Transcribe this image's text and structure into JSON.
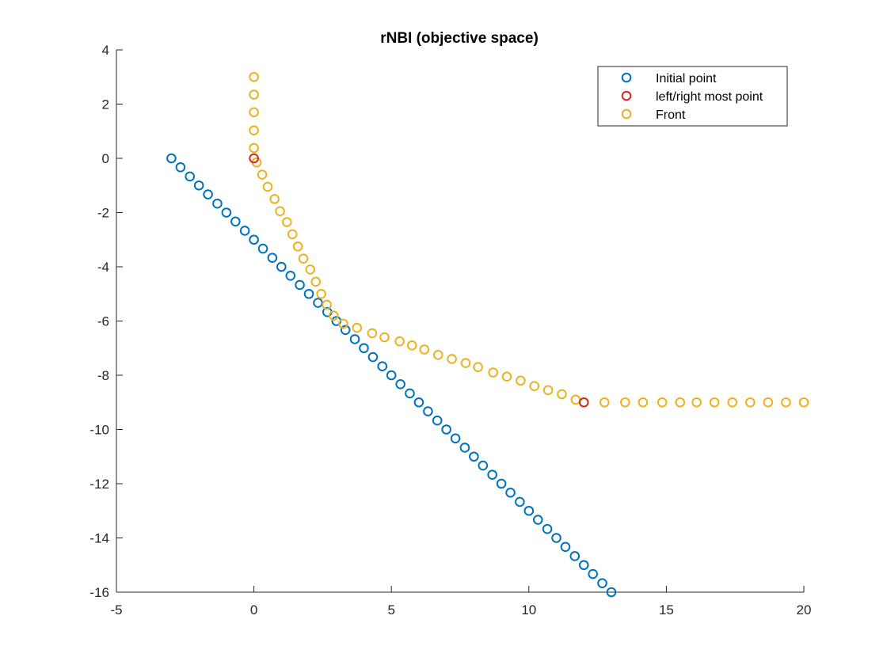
{
  "chart_data": {
    "type": "scatter",
    "title": "rNBI (objective space)",
    "xlabel": "",
    "ylabel": "",
    "xlim": [
      -5,
      20
    ],
    "ylim": [
      -16,
      4
    ],
    "x_ticks": [
      -5,
      0,
      5,
      10,
      15,
      20
    ],
    "y_ticks": [
      -16,
      -14,
      -12,
      -10,
      -8,
      -6,
      -4,
      -2,
      0,
      2,
      4
    ],
    "x_tick_labels": [
      "-5",
      "0",
      "5",
      "10",
      "15",
      "20"
    ],
    "y_tick_labels": [
      "-16",
      "-14",
      "-12",
      "-10",
      "-8",
      "-6",
      "-4",
      "-2",
      "0",
      "2",
      "4"
    ],
    "grid": false,
    "legend_position": "top-right",
    "marker": "open-circle",
    "series": [
      {
        "name": "Initial point",
        "color": "#0072BD",
        "points": [
          [
            -3,
            0
          ],
          [
            -2.67,
            -0.33
          ],
          [
            -2.33,
            -0.67
          ],
          [
            -2,
            -1
          ],
          [
            -1.67,
            -1.33
          ],
          [
            -1.33,
            -1.67
          ],
          [
            -1,
            -2
          ],
          [
            -0.67,
            -2.33
          ],
          [
            -0.33,
            -2.67
          ],
          [
            0,
            -3
          ],
          [
            0.33,
            -3.33
          ],
          [
            0.67,
            -3.67
          ],
          [
            1,
            -4
          ],
          [
            1.33,
            -4.33
          ],
          [
            1.67,
            -4.67
          ],
          [
            2,
            -5
          ],
          [
            2.33,
            -5.33
          ],
          [
            2.67,
            -5.67
          ],
          [
            3,
            -6
          ],
          [
            3.33,
            -6.33
          ],
          [
            3.67,
            -6.67
          ],
          [
            4,
            -7
          ],
          [
            4.33,
            -7.33
          ],
          [
            4.67,
            -7.67
          ],
          [
            5,
            -8
          ],
          [
            5.33,
            -8.33
          ],
          [
            5.67,
            -8.67
          ],
          [
            6,
            -9
          ],
          [
            6.33,
            -9.33
          ],
          [
            6.67,
            -9.67
          ],
          [
            7,
            -10
          ],
          [
            7.33,
            -10.33
          ],
          [
            7.67,
            -10.67
          ],
          [
            8,
            -11
          ],
          [
            8.33,
            -11.33
          ],
          [
            8.67,
            -11.67
          ],
          [
            9,
            -12
          ],
          [
            9.33,
            -12.33
          ],
          [
            9.67,
            -12.67
          ],
          [
            10,
            -13
          ],
          [
            10.33,
            -13.33
          ],
          [
            10.67,
            -13.67
          ],
          [
            11,
            -14
          ],
          [
            11.33,
            -14.33
          ],
          [
            11.67,
            -14.67
          ],
          [
            12,
            -15
          ],
          [
            12.33,
            -15.33
          ],
          [
            12.67,
            -15.67
          ],
          [
            13,
            -16
          ]
        ]
      },
      {
        "name": "left/right most point",
        "color": "#D62A1E",
        "points": [
          [
            0,
            0
          ],
          [
            12,
            -9
          ]
        ]
      },
      {
        "name": "Front",
        "color": "#EDB120",
        "points": [
          [
            0,
            3
          ],
          [
            0,
            2.35
          ],
          [
            0,
            1.7
          ],
          [
            0,
            1.03
          ],
          [
            0,
            0.38
          ],
          [
            0.1,
            -0.15
          ],
          [
            0.3,
            -0.6
          ],
          [
            0.5,
            -1.05
          ],
          [
            0.75,
            -1.5
          ],
          [
            0.95,
            -1.95
          ],
          [
            1.2,
            -2.35
          ],
          [
            1.4,
            -2.8
          ],
          [
            1.6,
            -3.25
          ],
          [
            1.8,
            -3.7
          ],
          [
            2.05,
            -4.1
          ],
          [
            2.25,
            -4.55
          ],
          [
            2.45,
            -5
          ],
          [
            2.65,
            -5.4
          ],
          [
            2.9,
            -5.8
          ],
          [
            3.25,
            -6.1
          ],
          [
            3.75,
            -6.25
          ],
          [
            4.3,
            -6.45
          ],
          [
            4.75,
            -6.6
          ],
          [
            5.3,
            -6.75
          ],
          [
            5.75,
            -6.9
          ],
          [
            6.2,
            -7.05
          ],
          [
            6.7,
            -7.25
          ],
          [
            7.2,
            -7.4
          ],
          [
            7.7,
            -7.55
          ],
          [
            8.15,
            -7.7
          ],
          [
            8.7,
            -7.9
          ],
          [
            9.2,
            -8.05
          ],
          [
            9.7,
            -8.2
          ],
          [
            10.2,
            -8.4
          ],
          [
            10.7,
            -8.55
          ],
          [
            11.2,
            -8.7
          ],
          [
            11.7,
            -8.9
          ],
          [
            12,
            -9
          ],
          [
            12.75,
            -9
          ],
          [
            13.5,
            -9
          ],
          [
            14.15,
            -9
          ],
          [
            14.85,
            -9
          ],
          [
            15.5,
            -9
          ],
          [
            16.1,
            -9
          ],
          [
            16.75,
            -9
          ],
          [
            17.4,
            -9
          ],
          [
            18.05,
            -9
          ],
          [
            18.7,
            -9
          ],
          [
            19.35,
            -9
          ],
          [
            20,
            -9
          ]
        ]
      }
    ]
  }
}
